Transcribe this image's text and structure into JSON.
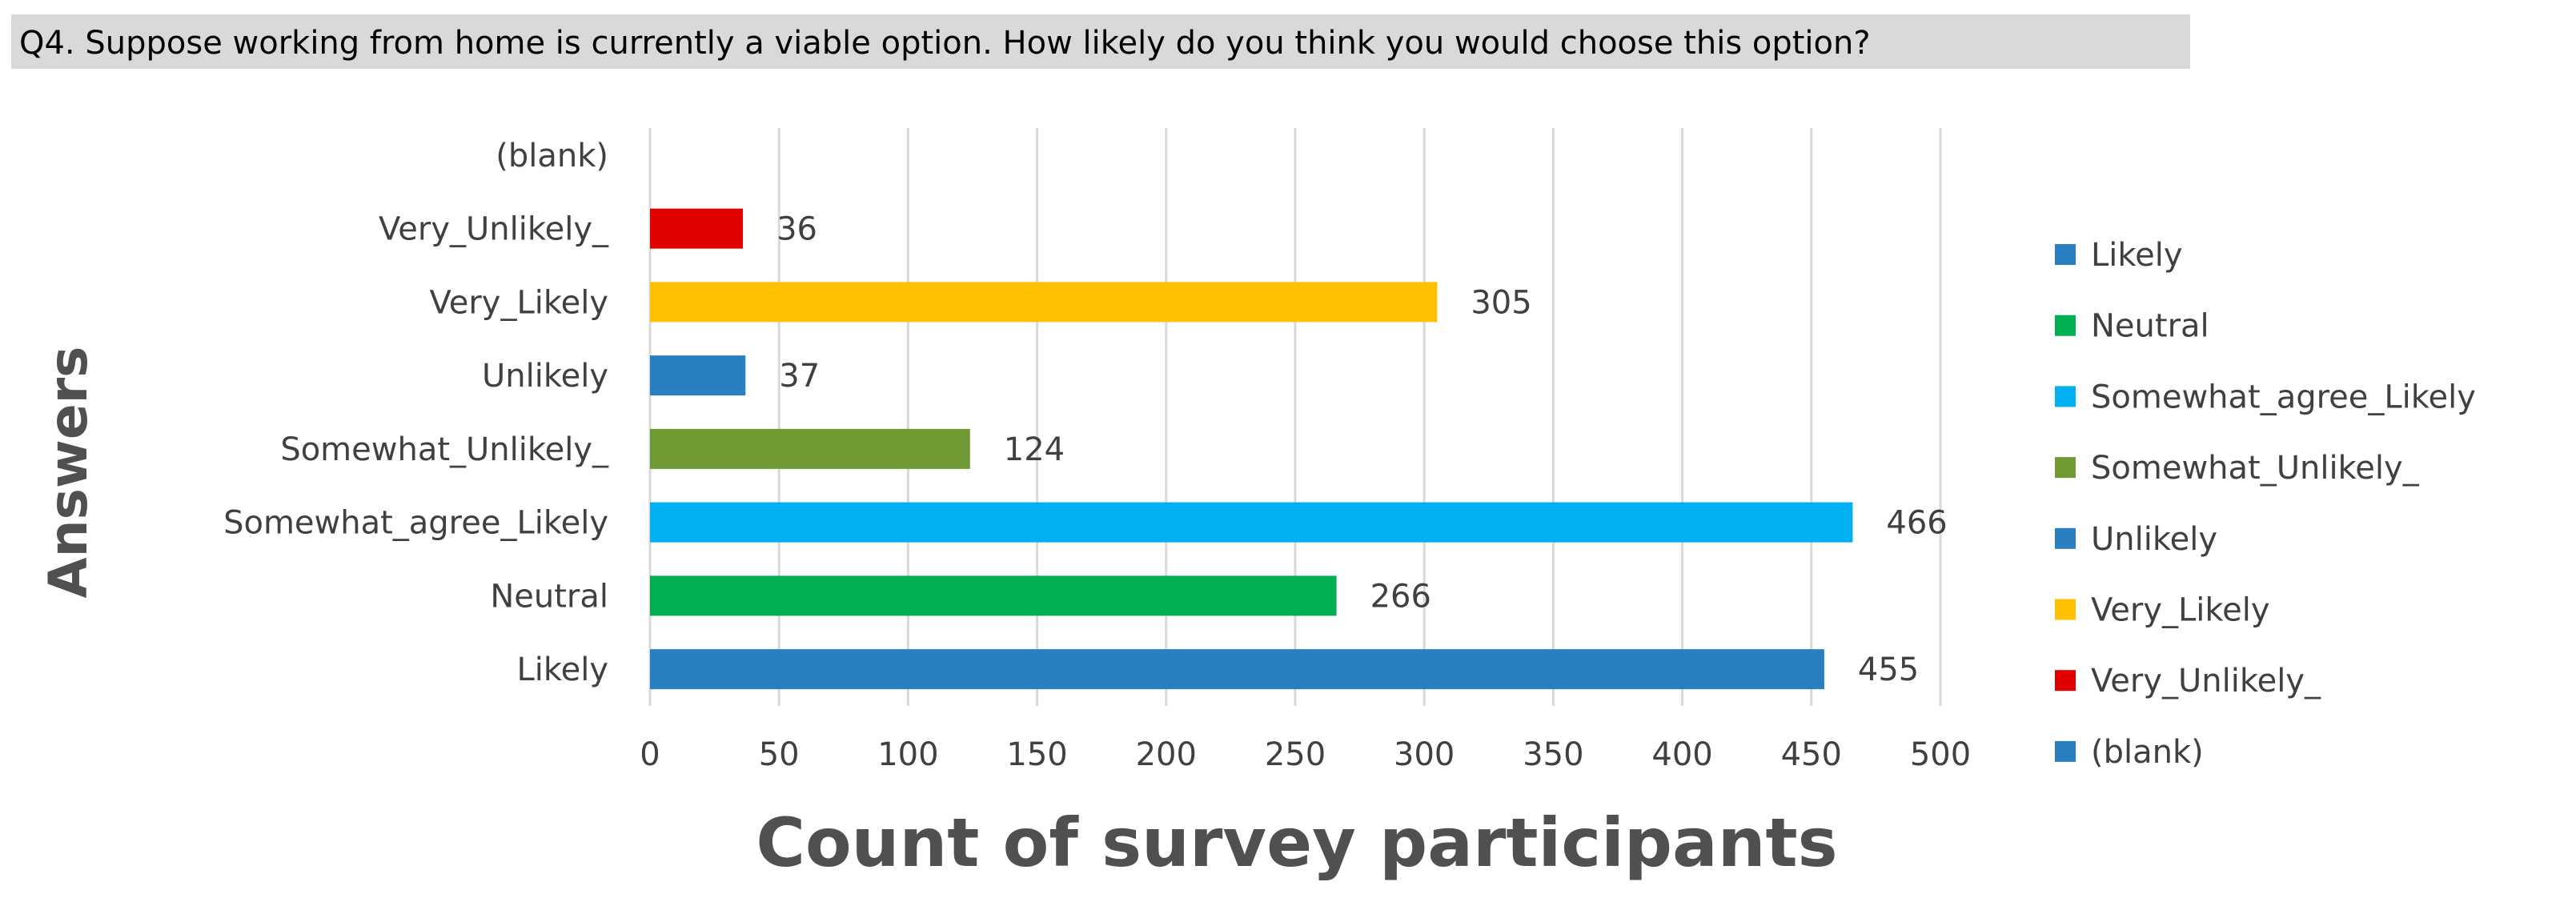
{
  "question": "Q4.  Suppose working from home is currently a viable option. How likely do you think you would choose this option?",
  "chart_data": {
    "type": "bar",
    "orientation": "horizontal",
    "categories": [
      "Likely",
      "Neutral",
      "Somewhat_agree_Likely",
      "Somewhat_Unlikely_",
      "Unlikely",
      "Very_Likely",
      "Very_Unlikely_",
      "(blank)"
    ],
    "values": [
      455,
      266,
      466,
      124,
      37,
      305,
      36,
      null
    ],
    "colors": [
      "#2a7fc1",
      "#00b050",
      "#00b0f0",
      "#6f9a33",
      "#2a7fc1",
      "#ffc000",
      "#e00000",
      "#2a7fc1"
    ],
    "xlabel": "Count of survey participants",
    "ylabel": "Answers",
    "xlim": [
      0,
      500
    ],
    "xticks": [
      0,
      50,
      100,
      150,
      200,
      250,
      300,
      350,
      400,
      450,
      500
    ],
    "grid": "vertical",
    "legend_position": "right",
    "legend": [
      "Likely",
      "Neutral",
      "Somewhat_agree_Likely",
      "Somewhat_Unlikely_",
      "Unlikely",
      "Very_Likely",
      "Very_Unlikely_",
      "(blank)"
    ]
  }
}
